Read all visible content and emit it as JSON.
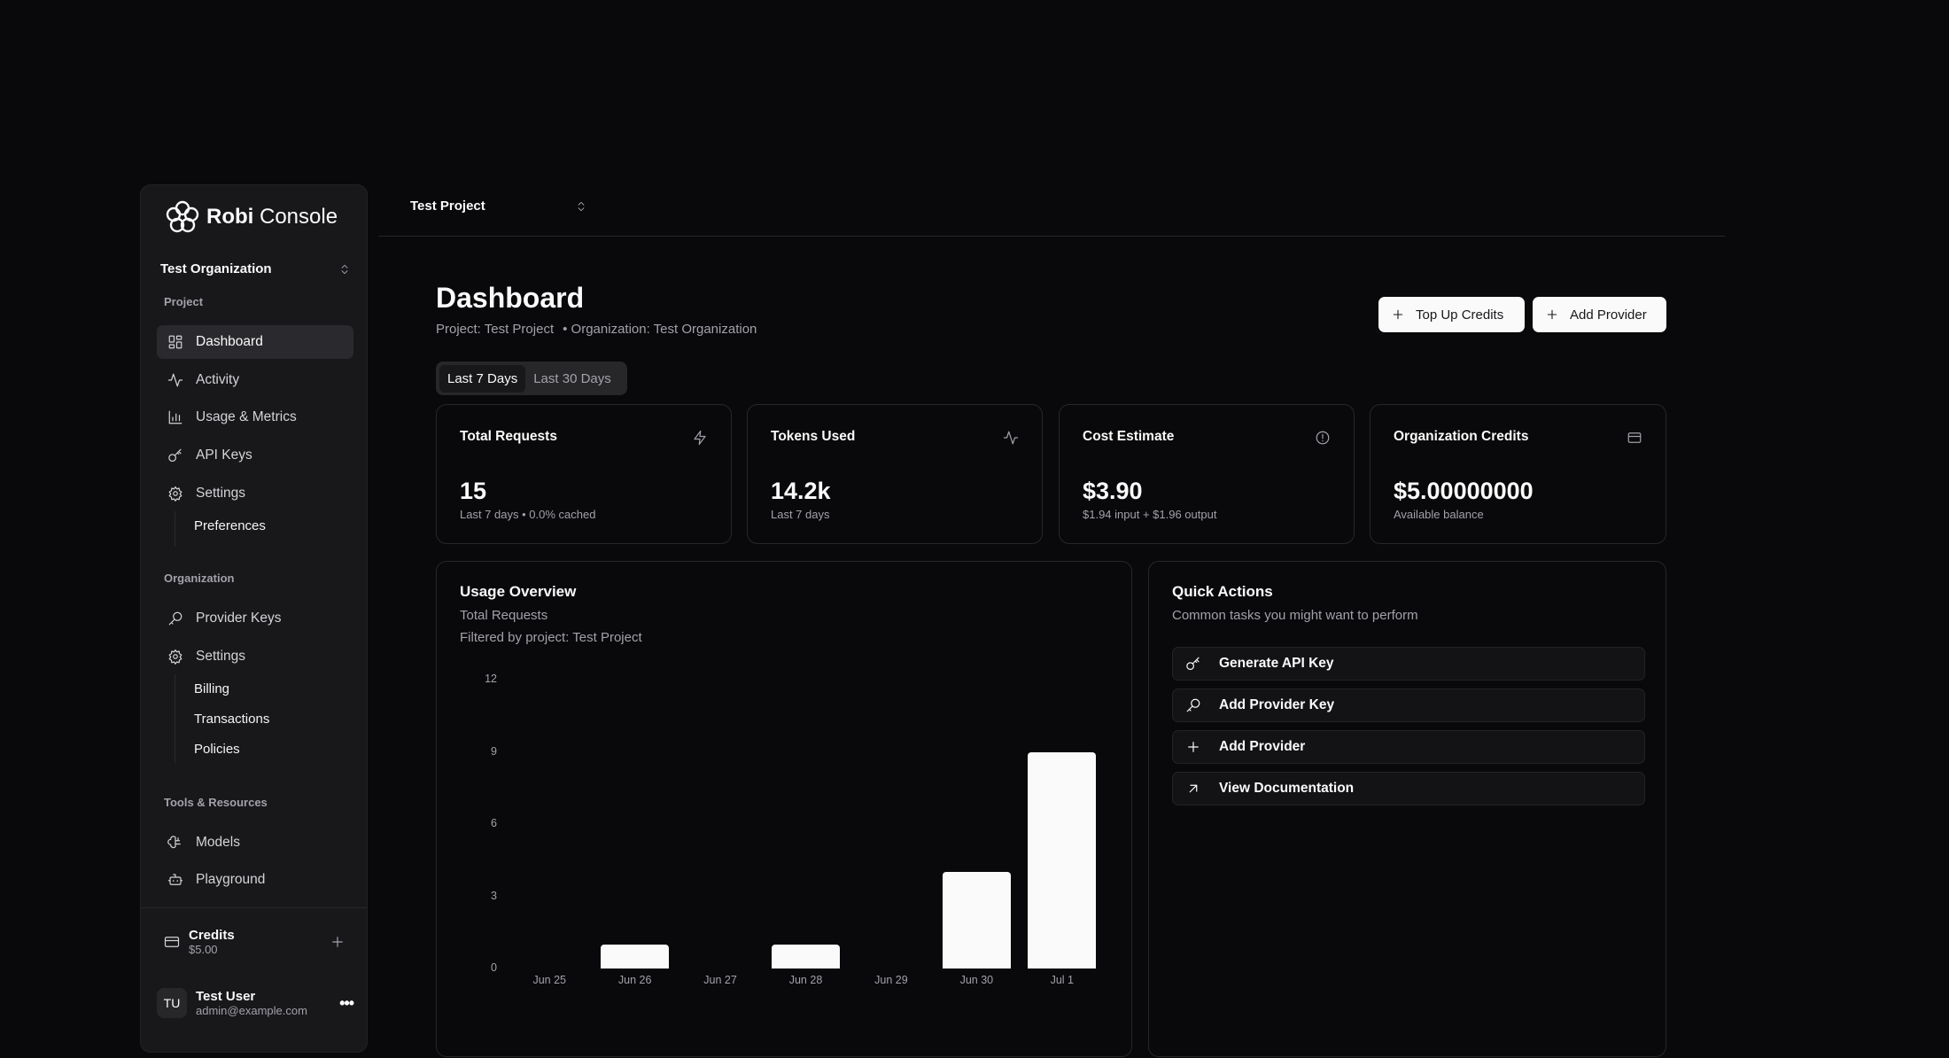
{
  "brand": {
    "name_bold": "Robi",
    "name_rest": "Console"
  },
  "sidebar": {
    "org_selector": "Test Organization",
    "sections": {
      "project": "Project",
      "organization": "Organization",
      "tools": "Tools & Resources"
    },
    "project_items": [
      {
        "label": "Dashboard",
        "icon": "dashboard-icon"
      },
      {
        "label": "Activity",
        "icon": "activity-icon"
      },
      {
        "label": "Usage & Metrics",
        "icon": "bar-chart-icon"
      },
      {
        "label": "API Keys",
        "icon": "key-icon"
      },
      {
        "label": "Settings",
        "icon": "gear-icon"
      }
    ],
    "project_sub": [
      "Preferences"
    ],
    "org_items": [
      {
        "label": "Provider Keys",
        "icon": "key-round-icon"
      },
      {
        "label": "Settings",
        "icon": "gear-icon"
      }
    ],
    "org_sub": [
      "Billing",
      "Transactions",
      "Policies"
    ],
    "tool_items": [
      {
        "label": "Models",
        "icon": "brain-icon"
      },
      {
        "label": "Playground",
        "icon": "bot-icon"
      }
    ],
    "credits": {
      "label": "Credits",
      "value": "$5.00"
    },
    "user": {
      "initials": "TU",
      "name": "Test User",
      "email": "admin@example.com"
    }
  },
  "topbar": {
    "project_selector": "Test Project"
  },
  "header": {
    "title": "Dashboard",
    "project": "Project: Test Project",
    "organization": "• Organization: Test Organization",
    "top_up": "Top Up Credits",
    "add_provider": "Add Provider"
  },
  "range_tabs": {
    "active": "Last 7 Days",
    "other": "Last 30 Days"
  },
  "stats": [
    {
      "title": "Total Requests",
      "value": "15",
      "sub": "Last 7 days • 0.0% cached",
      "icon": "zap-icon"
    },
    {
      "title": "Tokens Used",
      "value": "14.2k",
      "sub": "Last 7 days",
      "icon": "activity-icon"
    },
    {
      "title": "Cost Estimate",
      "value": "$3.90",
      "sub": "$1.94 input + $1.96 output",
      "icon": "alert-circle-icon"
    },
    {
      "title": "Organization Credits",
      "value": "$5.00000000",
      "sub": "Available balance",
      "icon": "credit-card-icon"
    }
  ],
  "usage": {
    "title": "Usage Overview",
    "subtitle": "Total Requests",
    "filter": "Filtered by project: Test Project"
  },
  "chart_data": {
    "type": "bar",
    "title": "Usage Overview",
    "ylabel": "Total Requests",
    "xlabel": "",
    "categories": [
      "Jun 25",
      "Jun 26",
      "Jun 27",
      "Jun 28",
      "Jun 29",
      "Jun 30",
      "Jul 1"
    ],
    "values": [
      0,
      1,
      0,
      1,
      0,
      4,
      9
    ],
    "ylim": [
      0,
      12
    ],
    "yticks": [
      "0",
      "3",
      "6",
      "9",
      "12"
    ],
    "grid": false,
    "bar_color": "#fafafa"
  },
  "quick_actions": {
    "title": "Quick Actions",
    "subtitle": "Common tasks you might want to perform",
    "items": [
      {
        "label": "Generate API Key",
        "icon": "key-icon"
      },
      {
        "label": "Add Provider Key",
        "icon": "key-round-icon"
      },
      {
        "label": "Add Provider",
        "icon": "plus-icon"
      },
      {
        "label": "View Documentation",
        "icon": "arrow-up-right-icon"
      }
    ]
  }
}
